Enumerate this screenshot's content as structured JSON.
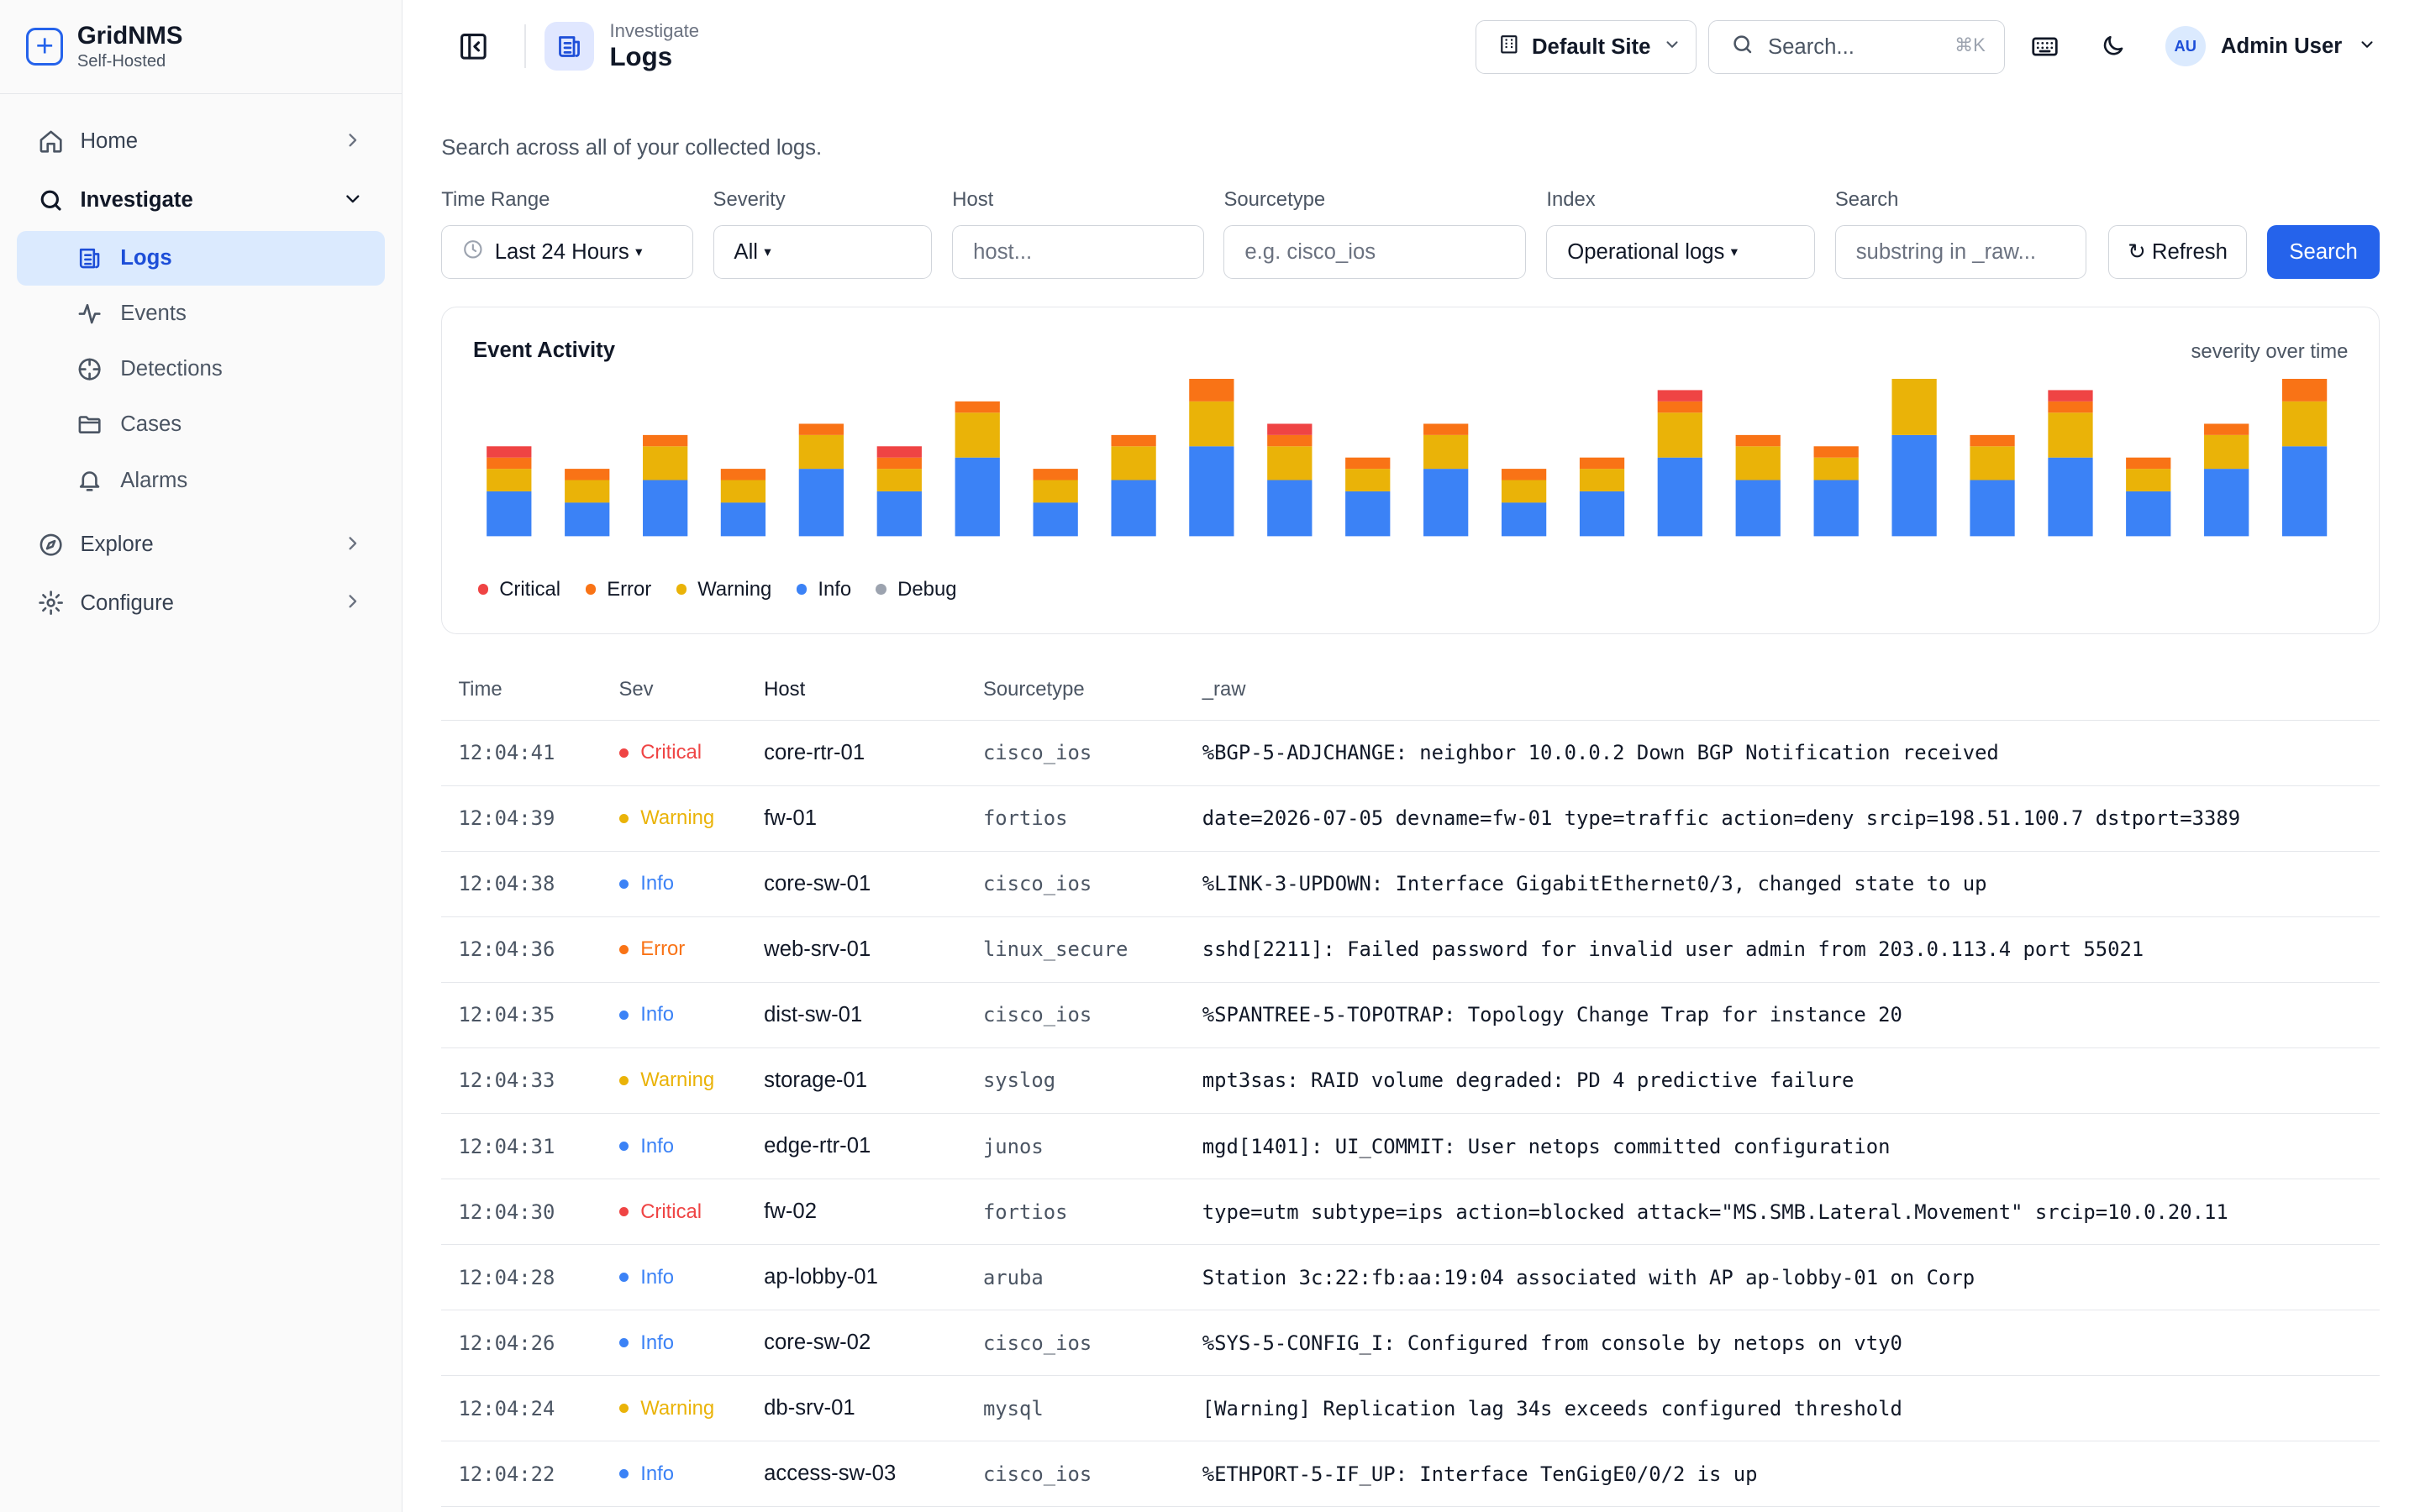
{
  "brand": {
    "name": "GridNMS",
    "subtitle": "Self-Hosted"
  },
  "sidebar": {
    "items": [
      {
        "label": "Home",
        "icon": "home-icon"
      },
      {
        "label": "Investigate",
        "icon": "search-icon",
        "expanded": true
      },
      {
        "label": "Logs",
        "icon": "logs-icon",
        "active": true
      },
      {
        "label": "Events",
        "icon": "activity-icon"
      },
      {
        "label": "Detections",
        "icon": "crosshair-icon"
      },
      {
        "label": "Cases",
        "icon": "folder-icon"
      },
      {
        "label": "Alarms",
        "icon": "bell-icon"
      },
      {
        "label": "Explore",
        "icon": "compass-icon"
      },
      {
        "label": "Configure",
        "icon": "gear-icon"
      }
    ]
  },
  "header": {
    "breadcrumb": "Investigate",
    "title": "Logs",
    "site": "Default Site",
    "search_placeholder": "Search...",
    "search_shortcut": "⌘K",
    "user_initials": "AU",
    "user_name": "Admin User"
  },
  "page": {
    "description": "Search across all of your collected logs."
  },
  "filters": {
    "time_range": {
      "label": "Time Range",
      "value": "Last 24 Hours"
    },
    "severity": {
      "label": "Severity",
      "value": "All"
    },
    "host": {
      "label": "Host",
      "placeholder": "host..."
    },
    "sourcetype": {
      "label": "Sourcetype",
      "placeholder": "e.g. cisco_ios"
    },
    "index": {
      "label": "Index",
      "value": "Operational logs"
    },
    "search": {
      "label": "Search",
      "placeholder": "substring in _raw..."
    },
    "refresh_label": "↻ Refresh",
    "search_button": "Search"
  },
  "activity": {
    "title": "Event Activity",
    "subtitle": "severity over time"
  },
  "chart_data": {
    "type": "bar",
    "stacked": true,
    "series": [
      {
        "name": "Info",
        "color": "#3b82f6",
        "values": [
          4,
          3,
          5,
          3,
          6,
          4,
          7,
          3,
          5,
          8,
          5,
          4,
          6,
          3,
          4,
          7,
          5,
          5,
          9,
          5,
          7,
          4,
          6,
          8
        ]
      },
      {
        "name": "Warning",
        "color": "#eab308",
        "values": [
          2,
          2,
          3,
          2,
          3,
          2,
          4,
          2,
          3,
          4,
          3,
          2,
          3,
          2,
          2,
          4,
          3,
          2,
          5,
          3,
          4,
          2,
          3,
          4
        ]
      },
      {
        "name": "Error",
        "color": "#f97316",
        "values": [
          1,
          1,
          1,
          1,
          1,
          1,
          1,
          1,
          1,
          2,
          1,
          1,
          1,
          1,
          1,
          1,
          1,
          1,
          0,
          1,
          1,
          1,
          1,
          2
        ]
      },
      {
        "name": "Critical",
        "color": "#ef4444",
        "values": [
          1,
          0,
          0,
          0,
          0,
          1,
          0,
          0,
          0,
          0,
          1,
          0,
          0,
          0,
          0,
          1,
          0,
          0,
          0,
          0,
          1,
          0,
          0,
          0
        ]
      },
      {
        "name": "Debug",
        "color": "#9ca3af",
        "values": [
          0,
          0,
          0,
          0,
          0,
          0,
          0,
          0,
          0,
          0,
          0,
          0,
          0,
          0,
          0,
          0,
          0,
          0,
          0,
          0,
          0,
          0,
          0,
          0
        ]
      }
    ],
    "legend": [
      "Critical",
      "Error",
      "Warning",
      "Info",
      "Debug"
    ],
    "legend_colors": [
      "#ef4444",
      "#f97316",
      "#eab308",
      "#3b82f6",
      "#9ca3af"
    ],
    "legend_placement": "bottom-left"
  },
  "table": {
    "headers": {
      "time": "Time",
      "sev": "Sev",
      "host": "Host",
      "sourcetype": "Sourcetype",
      "raw": "_raw"
    },
    "rows": [
      {
        "time": "12:04:41",
        "sev": "Critical",
        "sev_color": "#ef4444",
        "host": "core-rtr-01",
        "sourcetype": "cisco_ios",
        "raw": "%BGP-5-ADJCHANGE: neighbor 10.0.0.2 Down BGP Notification received"
      },
      {
        "time": "12:04:39",
        "sev": "Warning",
        "sev_color": "#eab308",
        "host": "fw-01",
        "sourcetype": "fortios",
        "raw": "date=2026-07-05 devname=fw-01 type=traffic action=deny srcip=198.51.100.7 dstport=3389"
      },
      {
        "time": "12:04:38",
        "sev": "Info",
        "sev_color": "#3b82f6",
        "host": "core-sw-01",
        "sourcetype": "cisco_ios",
        "raw": "%LINK-3-UPDOWN: Interface GigabitEthernet0/3, changed state to up"
      },
      {
        "time": "12:04:36",
        "sev": "Error",
        "sev_color": "#f97316",
        "host": "web-srv-01",
        "sourcetype": "linux_secure",
        "raw": "sshd[2211]: Failed password for invalid user admin from 203.0.113.4 port 55021"
      },
      {
        "time": "12:04:35",
        "sev": "Info",
        "sev_color": "#3b82f6",
        "host": "dist-sw-01",
        "sourcetype": "cisco_ios",
        "raw": "%SPANTREE-5-TOPOTRAP: Topology Change Trap for instance 20"
      },
      {
        "time": "12:04:33",
        "sev": "Warning",
        "sev_color": "#eab308",
        "host": "storage-01",
        "sourcetype": "syslog",
        "raw": "mpt3sas: RAID volume degraded: PD 4 predictive failure"
      },
      {
        "time": "12:04:31",
        "sev": "Info",
        "sev_color": "#3b82f6",
        "host": "edge-rtr-01",
        "sourcetype": "junos",
        "raw": "mgd[1401]: UI_COMMIT: User netops committed configuration"
      },
      {
        "time": "12:04:30",
        "sev": "Critical",
        "sev_color": "#ef4444",
        "host": "fw-02",
        "sourcetype": "fortios",
        "raw": "type=utm subtype=ips action=blocked attack=\"MS.SMB.Lateral.Movement\" srcip=10.0.20.11"
      },
      {
        "time": "12:04:28",
        "sev": "Info",
        "sev_color": "#3b82f6",
        "host": "ap-lobby-01",
        "sourcetype": "aruba",
        "raw": "Station 3c:22:fb:aa:19:04 associated with AP ap-lobby-01 on Corp"
      },
      {
        "time": "12:04:26",
        "sev": "Info",
        "sev_color": "#3b82f6",
        "host": "core-sw-02",
        "sourcetype": "cisco_ios",
        "raw": "%SYS-5-CONFIG_I: Configured from console by netops on vty0"
      },
      {
        "time": "12:04:24",
        "sev": "Warning",
        "sev_color": "#eab308",
        "host": "db-srv-01",
        "sourcetype": "mysql",
        "raw": "[Warning] Replication lag 34s exceeds configured threshold"
      },
      {
        "time": "12:04:22",
        "sev": "Info",
        "sev_color": "#3b82f6",
        "host": "access-sw-03",
        "sourcetype": "cisco_ios",
        "raw": "%ETHPORT-5-IF_UP: Interface TenGigE0/0/2 is up"
      }
    ]
  }
}
